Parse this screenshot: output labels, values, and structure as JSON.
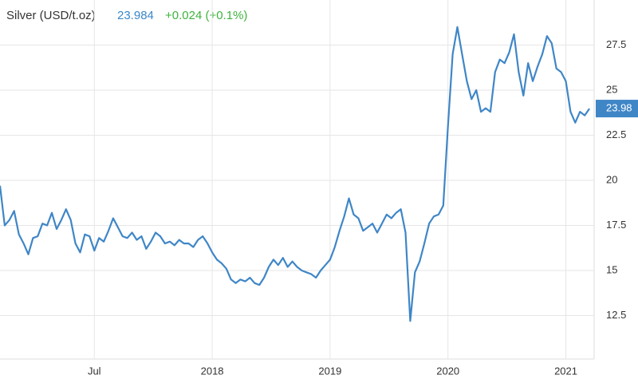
{
  "chart_data": {
    "type": "line",
    "title": "Silver (USD/t.oz)",
    "price": "23.984",
    "change": "+0.024 (+0.1%)",
    "last_label": "23.98",
    "x": [
      2016.2,
      2016.24,
      2016.28,
      2016.32,
      2016.36,
      2016.4,
      2016.44,
      2016.48,
      2016.52,
      2016.56,
      2016.6,
      2016.64,
      2016.68,
      2016.72,
      2016.76,
      2016.8,
      2016.84,
      2016.88,
      2016.92,
      2016.96,
      2017.0,
      2017.04,
      2017.08,
      2017.12,
      2017.16,
      2017.2,
      2017.24,
      2017.28,
      2017.32,
      2017.36,
      2017.4,
      2017.44,
      2017.48,
      2017.52,
      2017.56,
      2017.6,
      2017.64,
      2017.68,
      2017.72,
      2017.76,
      2017.8,
      2017.84,
      2017.88,
      2017.92,
      2017.96,
      2018.0,
      2018.04,
      2018.08,
      2018.12,
      2018.16,
      2018.2,
      2018.24,
      2018.28,
      2018.32,
      2018.36,
      2018.4,
      2018.44,
      2018.48,
      2018.52,
      2018.56,
      2018.6,
      2018.64,
      2018.68,
      2018.72,
      2018.76,
      2018.8,
      2018.84,
      2018.88,
      2018.92,
      2018.96,
      2019.0,
      2019.04,
      2019.08,
      2019.12,
      2019.16,
      2019.2,
      2019.24,
      2019.28,
      2019.32,
      2019.36,
      2019.4,
      2019.44,
      2019.48,
      2019.52,
      2019.56,
      2019.6,
      2019.64,
      2019.68,
      2019.72,
      2019.76,
      2019.8,
      2019.84,
      2019.88,
      2019.92,
      2019.96,
      2020.0,
      2020.04,
      2020.08,
      2020.12,
      2020.16,
      2020.2,
      2020.24,
      2020.28,
      2020.32,
      2020.36,
      2020.4,
      2020.44,
      2020.48,
      2020.52,
      2020.56,
      2020.6,
      2020.64,
      2020.68,
      2020.72,
      2020.76,
      2020.8,
      2020.84,
      2020.88,
      2020.92,
      2020.96,
      2021.0,
      2021.04,
      2021.08,
      2021.12,
      2021.16,
      2021.2
    ],
    "series": [
      {
        "name": "Silver",
        "color": "#3f86c7",
        "values": [
          19.7,
          17.5,
          17.8,
          18.3,
          17.0,
          16.5,
          15.9,
          16.8,
          16.9,
          17.6,
          17.5,
          18.2,
          17.3,
          17.8,
          18.4,
          17.8,
          16.5,
          16.0,
          17.0,
          16.9,
          16.1,
          16.8,
          16.6,
          17.2,
          17.9,
          17.4,
          16.9,
          16.8,
          17.1,
          16.7,
          16.9,
          16.2,
          16.6,
          17.1,
          16.9,
          16.5,
          16.6,
          16.4,
          16.7,
          16.5,
          16.5,
          16.3,
          16.7,
          16.9,
          16.5,
          16.0,
          15.6,
          15.4,
          15.1,
          14.5,
          14.3,
          14.5,
          14.4,
          14.6,
          14.3,
          14.2,
          14.6,
          15.2,
          15.6,
          15.3,
          15.7,
          15.2,
          15.5,
          15.2,
          15.0,
          14.9,
          14.8,
          14.6,
          15.0,
          15.3,
          15.6,
          16.3,
          17.2,
          18.0,
          19.0,
          18.1,
          17.9,
          17.2,
          17.4,
          17.6,
          17.1,
          17.6,
          18.1,
          17.9,
          18.2,
          18.4,
          17.1,
          12.2,
          14.9,
          15.5,
          16.5,
          17.6,
          18.0,
          18.1,
          18.6,
          23.0,
          27.0,
          28.5,
          27.0,
          25.5,
          24.5,
          25.0,
          23.8,
          24.0,
          23.8,
          26.0,
          26.7,
          26.5,
          27.1,
          28.1,
          26.0,
          24.7,
          26.5,
          25.5,
          26.3,
          27.0,
          28.0,
          27.6,
          26.2,
          26.0,
          25.5,
          23.8,
          23.2,
          23.8,
          23.6,
          23.98
        ]
      }
    ],
    "xlim": [
      2016.2,
      2021.24
    ],
    "xticks": [
      {
        "value": 2017,
        "label": "Jul"
      },
      2018,
      2019,
      2020,
      2021
    ],
    "ylim": [
      10,
      30
    ],
    "yticks": [
      12.5,
      15,
      17.5,
      20,
      22.5,
      25,
      27.5
    ],
    "grid": true
  }
}
